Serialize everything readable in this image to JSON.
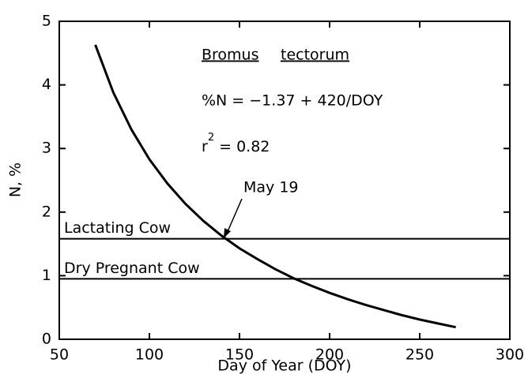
{
  "chart_data": {
    "type": "line",
    "xlabel": "Day of Year (DOY)",
    "ylabel": "N, %",
    "xlim": [
      50,
      300
    ],
    "xticks": [
      50,
      100,
      150,
      200,
      250,
      300
    ],
    "ylim": [
      0,
      5
    ],
    "yticks": [
      0,
      1,
      2,
      3,
      4,
      5
    ],
    "series": [
      {
        "color": "#000000",
        "x": [
          70,
          80,
          90,
          100,
          110,
          120,
          130,
          140,
          150,
          160,
          170,
          180,
          190,
          200,
          210,
          220,
          230,
          240,
          250,
          260,
          270
        ],
        "values": [
          4.63,
          3.88,
          3.3,
          2.83,
          2.45,
          2.13,
          1.86,
          1.63,
          1.43,
          1.26,
          1.1,
          0.96,
          0.84,
          0.73,
          0.63,
          0.54,
          0.46,
          0.38,
          0.31,
          0.25,
          0.19
        ]
      }
    ],
    "reference_lines": [
      {
        "label": "Lactating Cow",
        "value": 1.58
      },
      {
        "label": "Dry Pregnant Cow",
        "value": 0.95
      }
    ],
    "annotations": {
      "species_genus": "Bromus",
      "species_epithet": "tectorum",
      "equation": "%N = −1.37 + 420/DOY",
      "r2": {
        "base": "r",
        "sup": "2",
        "rest": " = 0.82"
      },
      "date": "May 19"
    }
  }
}
